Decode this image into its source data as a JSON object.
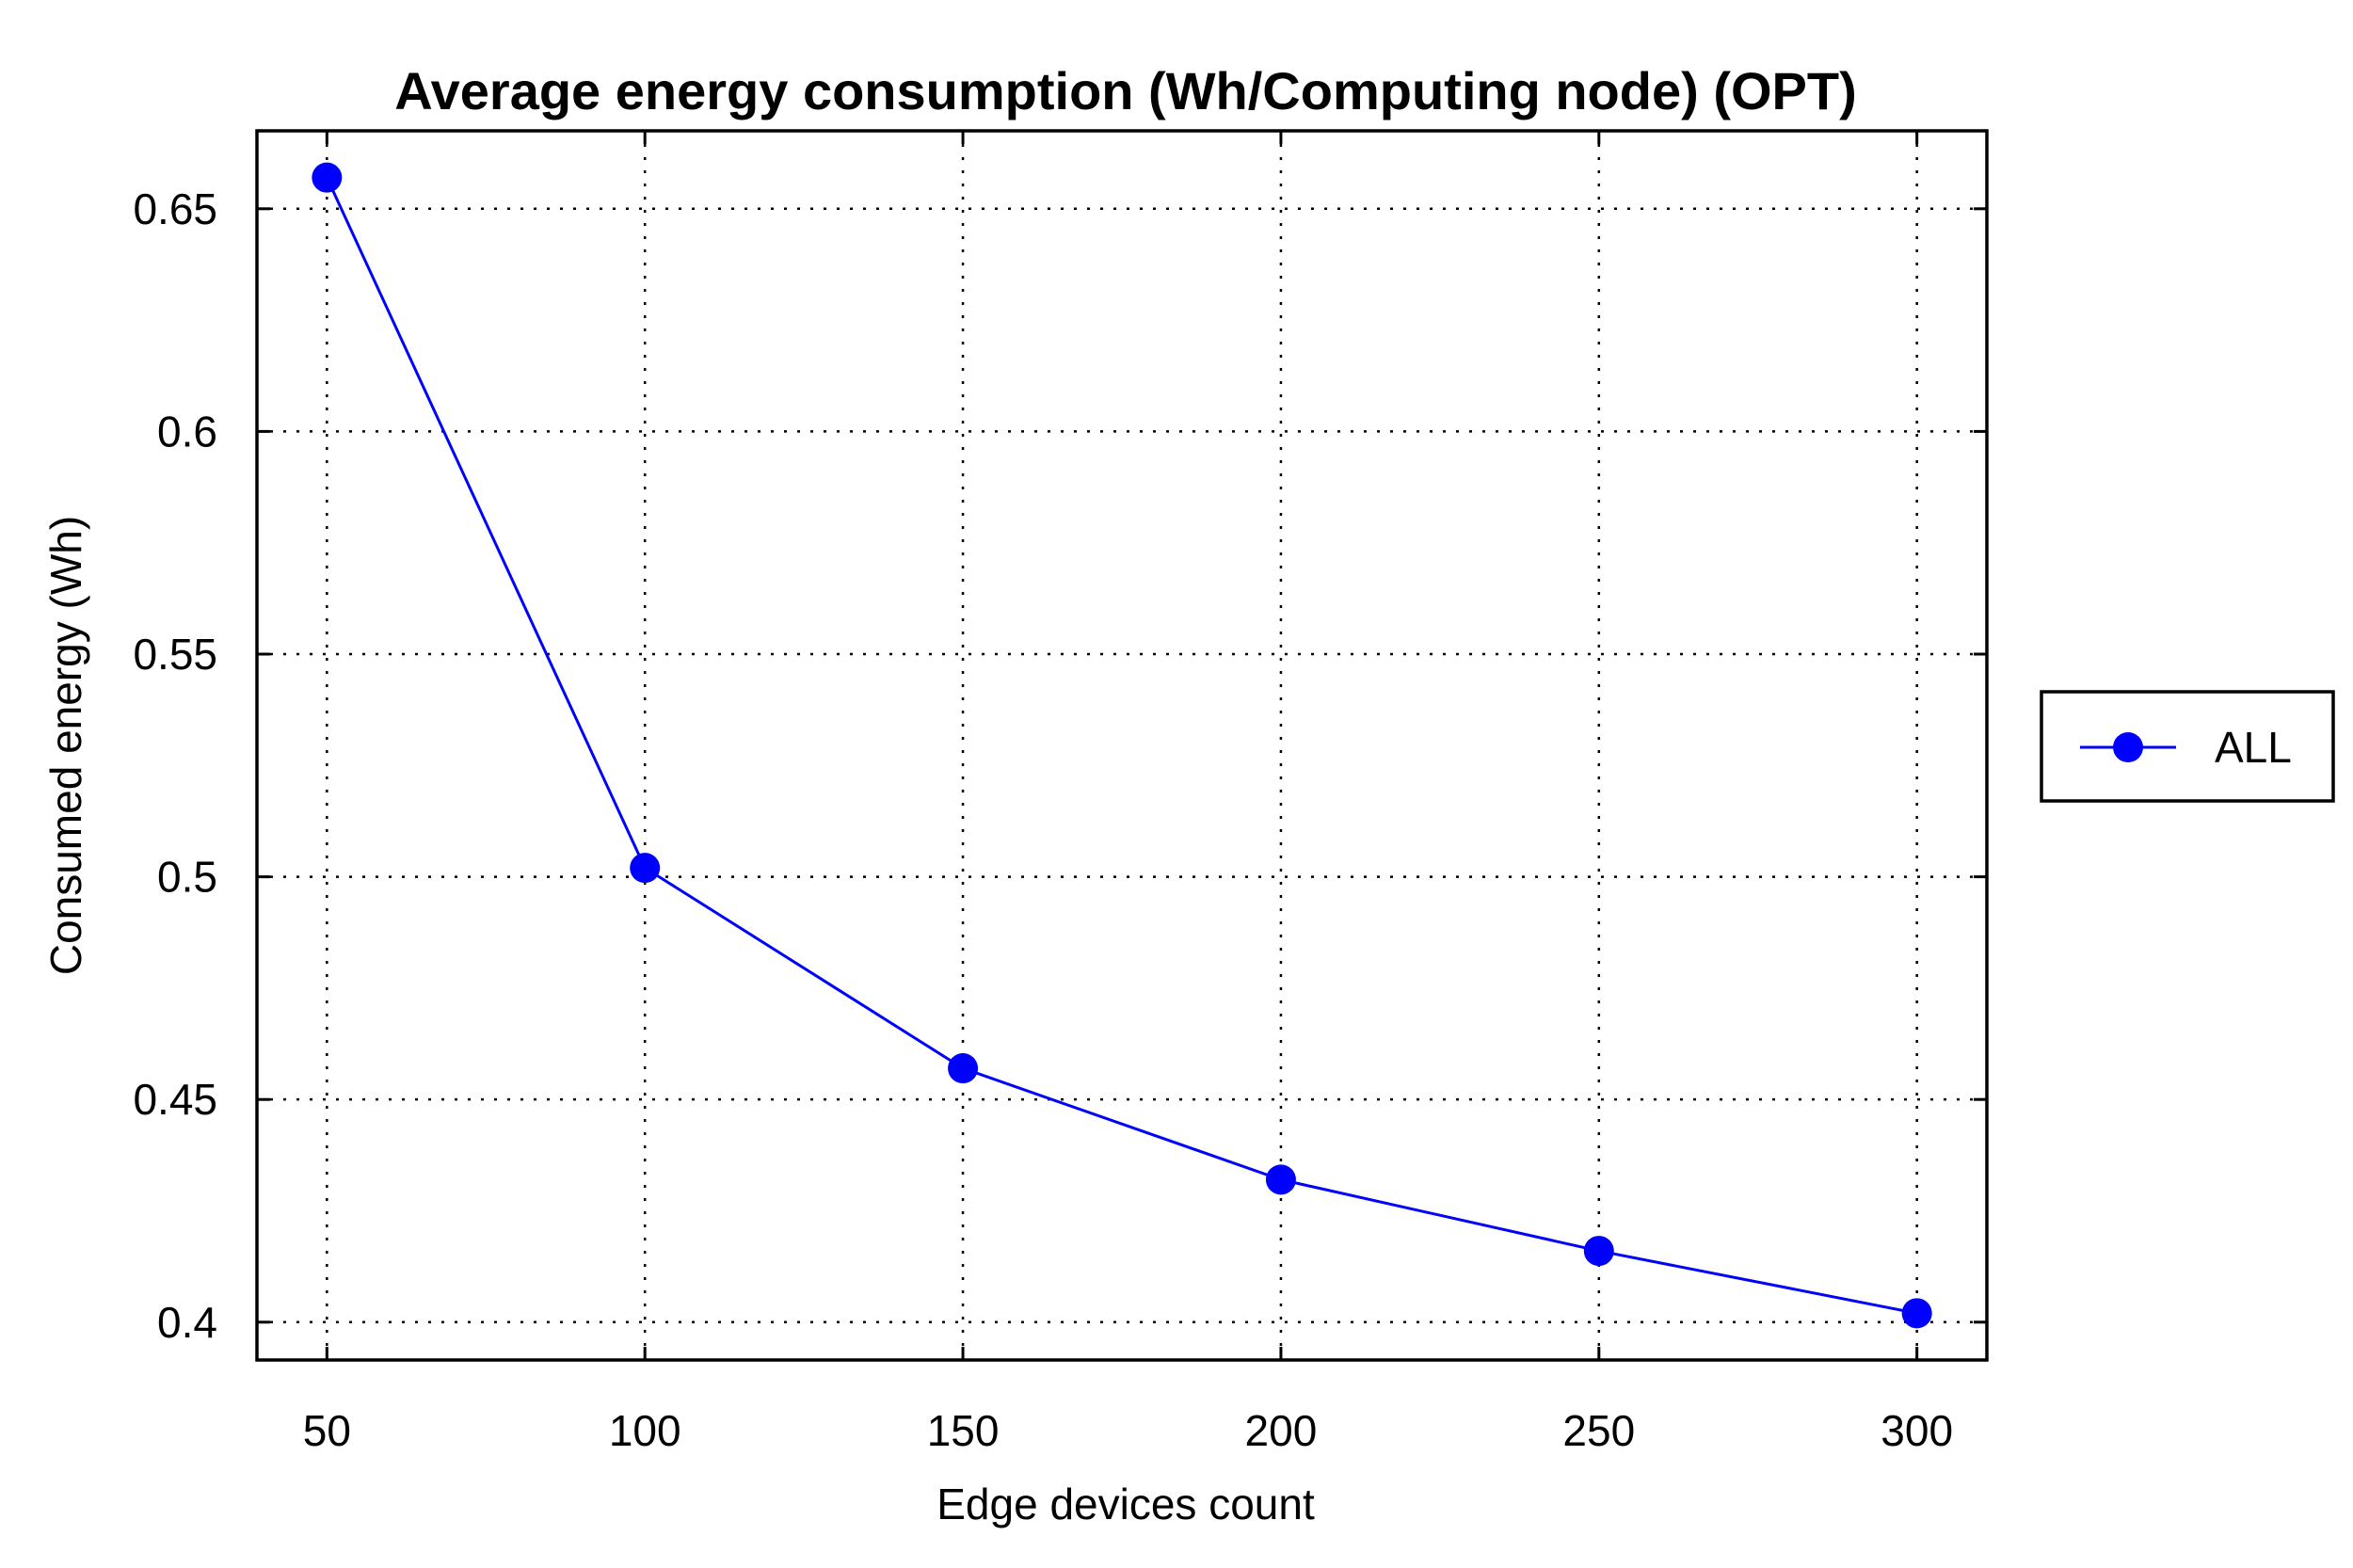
{
  "chart_data": {
    "type": "line",
    "title": "Average energy consumption (Wh/Computing node) (OPT)",
    "xlabel": "Edge devices count",
    "ylabel": "Consumed energy (Wh)",
    "x": [
      50,
      100,
      150,
      200,
      250,
      300
    ],
    "x_tick_labels": [
      "50",
      "100",
      "150",
      "200",
      "250",
      "300"
    ],
    "y_ticks": [
      0.4,
      0.45,
      0.5,
      0.55,
      0.6,
      0.65
    ],
    "y_tick_labels": [
      "0.4",
      "0.45",
      "0.5",
      "0.55",
      "0.6",
      "0.65"
    ],
    "xlim": [
      39,
      311
    ],
    "ylim": [
      0.3915,
      0.6675
    ],
    "grid": true,
    "legend_position": "right",
    "series": [
      {
        "name": "ALL",
        "color": "#0000ff",
        "marker": "circle",
        "values": [
          0.657,
          0.502,
          0.457,
          0.432,
          0.416,
          0.402
        ]
      }
    ]
  }
}
